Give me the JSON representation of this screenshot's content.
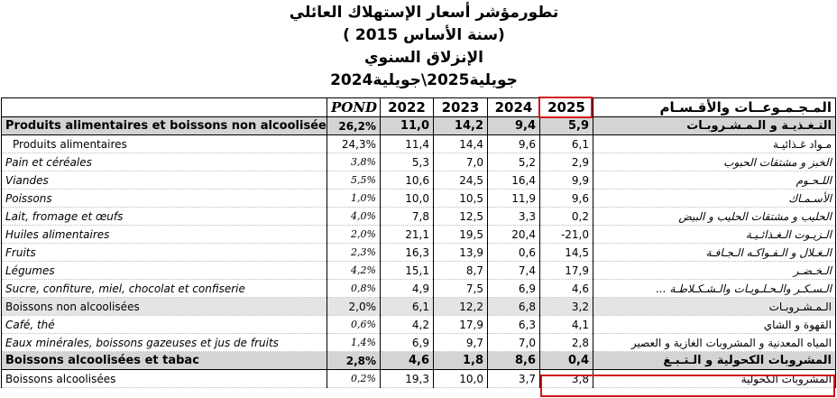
{
  "title": {
    "lines": [
      "تطورمؤشر أسعار الإستهلاك العائلي",
      "(سنة الأساس 2015 )",
      "الإنزلاق السنوي",
      "جويلية2025\\جويلية2024"
    ]
  },
  "table": {
    "header": [
      "",
      "POND",
      "2022",
      "2023",
      "2024",
      "2025",
      "المـجـمـوعــات والأقـسـام"
    ],
    "rows": [
      [
        "Produits alimentaires et boissons non alcoolisées",
        "26,2%",
        "11,0",
        "14,2",
        "9,4",
        "5,9",
        "التـغـذيـة و الـمـشـروبـات"
      ],
      [
        "Produits alimentaires",
        "24,3%",
        "11,4",
        "14,4",
        "9,6",
        "6,1",
        "مـواد غـذائيـة"
      ],
      [
        "Pain et céréales",
        "3,8%",
        "5,3",
        "7,0",
        "5,2",
        "2,9",
        "الخبز و مشتقات الحبوب"
      ],
      [
        "Viandes",
        "5,5%",
        "10,6",
        "24,5",
        "16,4",
        "9,9",
        "اللـحـوم"
      ],
      [
        "Poissons",
        "1,0%",
        "10,0",
        "10,5",
        "11,9",
        "9,6",
        "الأسـمـاك"
      ],
      [
        "Lait, fromage et œufs",
        "4,0%",
        "7,8",
        "12,5",
        "3,3",
        "0,2",
        "الحليب و مشتقات الحليب و البيض"
      ],
      [
        "Huiles alimentaires",
        "2,0%",
        "21,1",
        "19,5",
        "20,4",
        "-21,0",
        "الـزيـوت الـغـذائـيـة"
      ],
      [
        "Fruits",
        "2,3%",
        "16,3",
        "13,9",
        "0,6",
        "14,5",
        "الـغـلال و الـفـواكـه الـجـافـة"
      ],
      [
        "Légumes",
        "4,2%",
        "15,1",
        "8,7",
        "7,4",
        "17,9",
        "الـخـضـر"
      ],
      [
        "Sucre, confiture, miel, chocolat et confiserie",
        "0,8%",
        "4,9",
        "7,5",
        "6,9",
        "4,6",
        "الـسـكـر والـحـلـويـات والـشـكـلاطـة ..."
      ],
      [
        "Boissons non alcoolisées",
        "2,0%",
        "6,1",
        "12,2",
        "6,8",
        "3,2",
        "الـمـشـروبـات"
      ],
      [
        "Café, thé",
        "0,6%",
        "4,2",
        "17,9",
        "6,3",
        "4,1",
        "القهوة و الشاي"
      ],
      [
        "Eaux minérales, boissons gazeuses et jus de fruits",
        "1,4%",
        "6,9",
        "9,7",
        "7,0",
        "2,8",
        "المياه المعدنية و المشروبات الغازية و العصير"
      ],
      [
        "Boissons alcoolisées et tabac",
        "2,8%",
        "4,6",
        "1,8",
        "8,6",
        "0,4",
        "المشروبات الكحولية و الـتـبـغ"
      ],
      [
        "Boissons alcoolisées",
        "0,2%",
        "19,3",
        "10,0",
        "3,7",
        "3,8",
        "المشروبات الكحولية"
      ]
    ]
  }
}
